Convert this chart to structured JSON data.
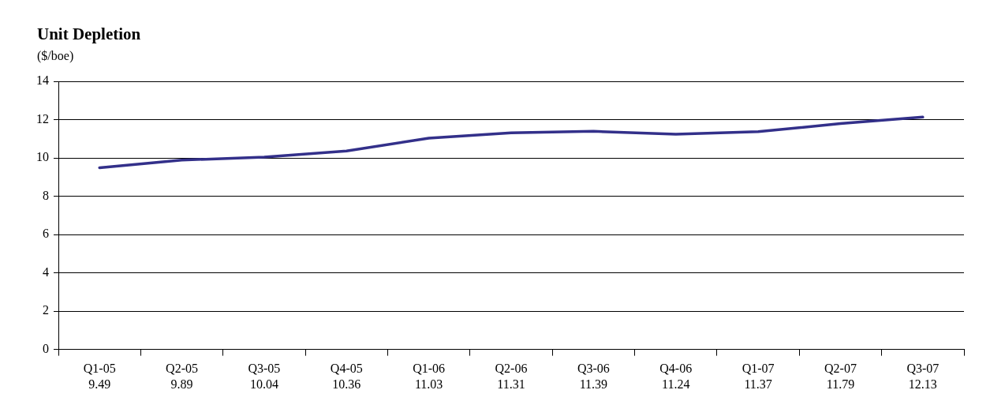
{
  "chart_data": {
    "type": "line",
    "title": "Unit Depletion",
    "subtitle": "($/boe)",
    "categories": [
      "Q1-05",
      "Q2-05",
      "Q3-05",
      "Q4-05",
      "Q1-06",
      "Q2-06",
      "Q3-06",
      "Q4-06",
      "Q1-07",
      "Q2-07",
      "Q3-07"
    ],
    "series": [
      {
        "color": "#33308a",
        "values": [
          9.49,
          9.89,
          10.04,
          10.36,
          11.03,
          11.31,
          11.39,
          11.24,
          11.37,
          11.79,
          12.13
        ]
      }
    ],
    "ylim": [
      0,
      14
    ],
    "yticks": [
      0,
      2,
      4,
      6,
      8,
      10,
      12,
      14
    ],
    "grid": "y",
    "legend": false,
    "marker": "none",
    "line_style": "solid",
    "data_labels": true
  }
}
